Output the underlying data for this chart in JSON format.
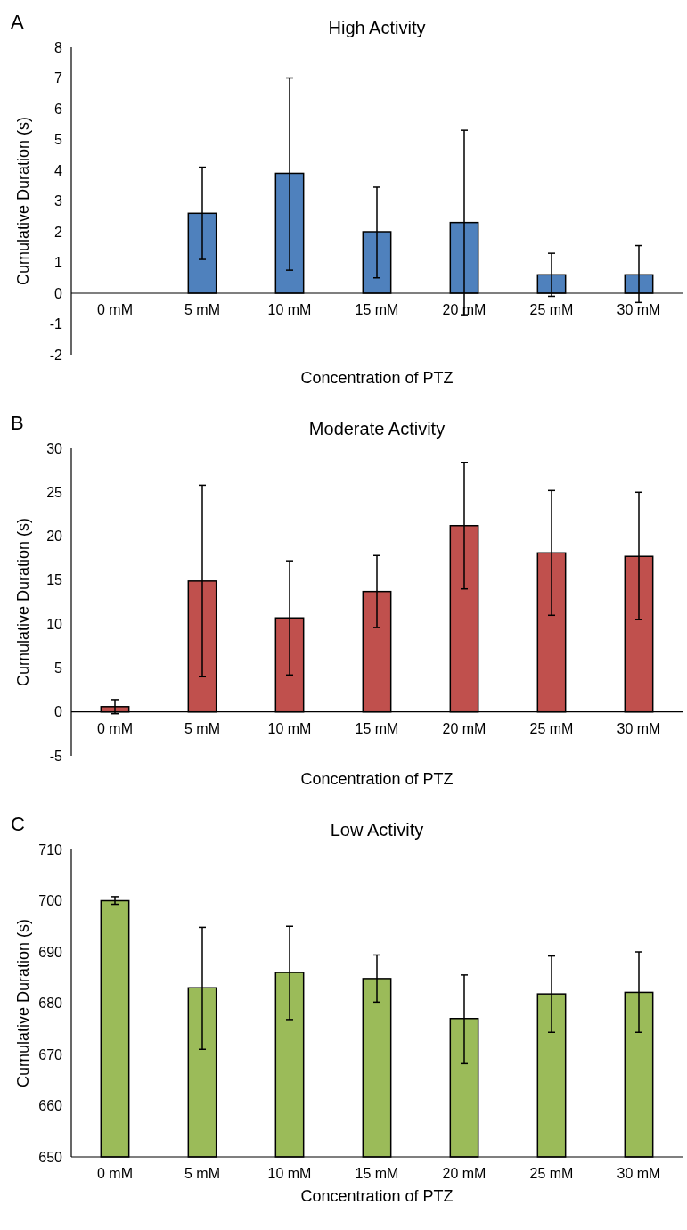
{
  "chart_data": [
    {
      "type": "bar",
      "title": "High Activity",
      "xlabel": "Concentration of PTZ",
      "ylabel": "Cumulative Duration (s)",
      "annotations": [
        "A"
      ],
      "categories": [
        "0 mM",
        "5 mM",
        "10 mM",
        "15 mM",
        "20 mM",
        "25 mM",
        "30 mM"
      ],
      "color": "#4f81bd",
      "values": [
        0,
        2.6,
        3.9,
        2.0,
        2.3,
        0.6,
        0.6
      ],
      "errors": [
        null,
        [
          1.1,
          4.1
        ],
        [
          0.75,
          7.0
        ],
        [
          0.5,
          3.45
        ],
        [
          -0.7,
          5.3
        ],
        [
          -0.1,
          1.3
        ],
        [
          -0.3,
          1.55
        ]
      ],
      "ylim": [
        -2,
        8
      ],
      "yticks": [
        -2,
        -1,
        0,
        1,
        2,
        3,
        4,
        5,
        6,
        7,
        8
      ]
    },
    {
      "type": "bar",
      "title": "Moderate Activity",
      "xlabel": "Concentration of PTZ",
      "ylabel": "Cumulative Duration (s)",
      "annotations": [
        "B"
      ],
      "categories": [
        "0 mM",
        "5 mM",
        "10 mM",
        "15 mM",
        "20 mM",
        "25 mM",
        "30 mM"
      ],
      "color": "#c0504d",
      "values": [
        0.6,
        14.9,
        10.7,
        13.7,
        21.2,
        18.1,
        17.7
      ],
      "errors": [
        [
          -0.2,
          1.4
        ],
        [
          4.0,
          25.8
        ],
        [
          4.2,
          17.2
        ],
        [
          9.6,
          17.8
        ],
        [
          14.0,
          28.4
        ],
        [
          11.0,
          25.2
        ],
        [
          10.5,
          25.0
        ]
      ],
      "ylim": [
        -5,
        30
      ],
      "yticks": [
        -5,
        0,
        5,
        10,
        15,
        20,
        25,
        30
      ]
    },
    {
      "type": "bar",
      "title": "Low Activity",
      "xlabel": "Concentration of PTZ",
      "ylabel": "Cumulative Duration (s)",
      "annotations": [
        "C"
      ],
      "categories": [
        "0 mM",
        "5 mM",
        "10 mM",
        "15 mM",
        "20 mM",
        "25 mM",
        "30 mM"
      ],
      "color": "#9bbb59",
      "values": [
        700,
        683,
        686,
        684.8,
        677,
        681.8,
        682.1
      ],
      "errors": [
        [
          699.3,
          700.8
        ],
        [
          671,
          694.8
        ],
        [
          676.8,
          695
        ],
        [
          680.2,
          689.4
        ],
        [
          668.2,
          685.5
        ],
        [
          674.3,
          689.2
        ],
        [
          674.3,
          690
        ]
      ],
      "ylim": [
        650,
        710
      ],
      "yticks": [
        650,
        660,
        670,
        680,
        690,
        700,
        710
      ]
    }
  ]
}
